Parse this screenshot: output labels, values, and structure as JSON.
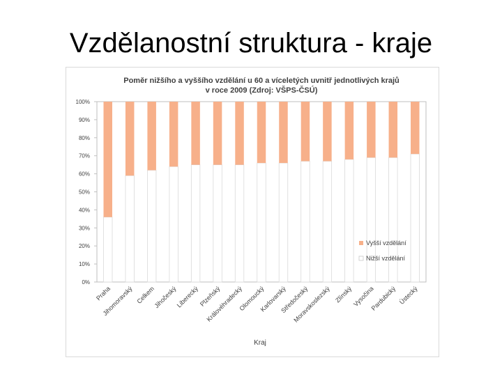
{
  "slide": {
    "title": "Vzdělanostní struktura - kraje"
  },
  "chart_data": {
    "type": "bar",
    "stacked": true,
    "percent_stacked": true,
    "title": "Poměr nižšího a vyššího vzdělání u 60 a víceletých uvnitř jednotlivých krajů",
    "subtitle": "v roce 2009 (Zdroj: VŠPS-ČSÚ)",
    "xlabel": "Kraj",
    "ylabel": "",
    "ylim": [
      0,
      100
    ],
    "yticks": [
      "0%",
      "10%",
      "20%",
      "30%",
      "40%",
      "50%",
      "60%",
      "70%",
      "80%",
      "90%",
      "100%"
    ],
    "grid": false,
    "legend": "right-inside",
    "categories": [
      "Praha",
      "Jihomoravský",
      "Celkem",
      "Jihočeský",
      "Liberecký",
      "Plzeňský",
      "Královéhradecký",
      "Olomoucký",
      "Karlovarský",
      "Středočeský",
      "Moravskoslezský",
      "Zlínský",
      "Vysočina",
      "Pardubický",
      "Ústecký"
    ],
    "series": [
      {
        "name": "Nižší vzdělání",
        "color": "#ffffff",
        "values": [
          36,
          59,
          62,
          64,
          65,
          65,
          65,
          66,
          66,
          67,
          67,
          68,
          69,
          69,
          71
        ]
      },
      {
        "name": "Vyšší vzdělání",
        "color": "#f7b08a",
        "values": [
          64,
          41,
          38,
          36,
          35,
          35,
          35,
          34,
          34,
          33,
          33,
          32,
          31,
          31,
          29
        ]
      }
    ]
  }
}
